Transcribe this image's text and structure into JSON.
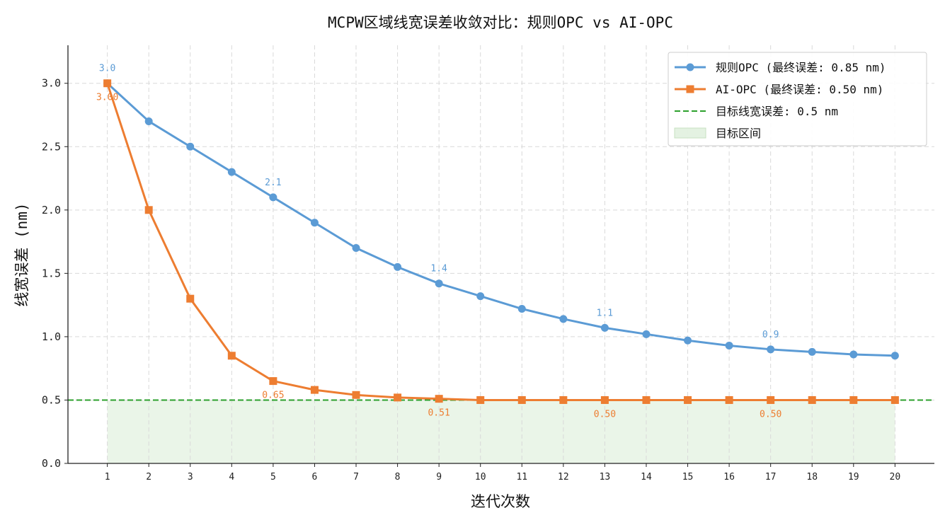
{
  "chart_data": {
    "type": "line",
    "title": "MCPW区域线宽误差收敛对比：规则OPC vs AI-OPC",
    "xlabel": "迭代次数",
    "ylabel": "线宽误差 (nm)",
    "x": [
      1,
      2,
      3,
      4,
      5,
      6,
      7,
      8,
      9,
      10,
      11,
      12,
      13,
      14,
      15,
      16,
      17,
      18,
      19,
      20
    ],
    "xticks": [
      "1",
      "2",
      "3",
      "4",
      "5",
      "6",
      "7",
      "8",
      "9",
      "10",
      "11",
      "12",
      "13",
      "14",
      "15",
      "16",
      "17",
      "18",
      "19",
      "20"
    ],
    "yticks": [
      "0.0",
      "0.5",
      "1.0",
      "1.5",
      "2.0",
      "2.5",
      "3.0"
    ],
    "ytick_values": [
      0.0,
      0.5,
      1.0,
      1.5,
      2.0,
      2.5,
      3.0
    ],
    "xlim": [
      0.05,
      20.95
    ],
    "ylim": [
      0,
      3.3
    ],
    "grid": true,
    "legend_position": "top-right",
    "series": [
      {
        "name": "规则OPC (最终误差: 0.85 nm)",
        "color": "#5b9bd5",
        "marker": "circle",
        "values": [
          3.0,
          2.7,
          2.5,
          2.3,
          2.1,
          1.9,
          1.7,
          1.55,
          1.42,
          1.32,
          1.22,
          1.14,
          1.07,
          1.02,
          0.97,
          0.93,
          0.9,
          0.88,
          0.86,
          0.85
        ]
      },
      {
        "name": "AI-OPC (最终误差: 0.50 nm)",
        "color": "#ed7d31",
        "marker": "square",
        "values": [
          3.0,
          2.0,
          1.3,
          0.85,
          0.65,
          0.58,
          0.54,
          0.52,
          0.51,
          0.5,
          0.5,
          0.5,
          0.5,
          0.5,
          0.5,
          0.5,
          0.5,
          0.5,
          0.5,
          0.5
        ]
      }
    ],
    "target_line": {
      "label": "目标线宽误差: 0.5 nm",
      "value": 0.5,
      "color": "#2ca02c"
    },
    "target_region": {
      "label": "目标区间",
      "from": 0,
      "to": 0.5,
      "color": "#d9ecd5"
    },
    "annotations": [
      {
        "series": 0,
        "x": 1,
        "text": "3.0",
        "placement": "above"
      },
      {
        "series": 0,
        "x": 5,
        "text": "2.1",
        "placement": "above"
      },
      {
        "series": 0,
        "x": 9,
        "text": "1.4",
        "placement": "above"
      },
      {
        "series": 0,
        "x": 13,
        "text": "1.1",
        "placement": "above"
      },
      {
        "series": 0,
        "x": 17,
        "text": "0.9",
        "placement": "above"
      },
      {
        "series": 1,
        "x": 1,
        "text": "3.00",
        "placement": "below"
      },
      {
        "series": 1,
        "x": 5,
        "text": "0.65",
        "placement": "below"
      },
      {
        "series": 1,
        "x": 9,
        "text": "0.51",
        "placement": "below"
      },
      {
        "series": 1,
        "x": 13,
        "text": "0.50",
        "placement": "below"
      },
      {
        "series": 1,
        "x": 17,
        "text": "0.50",
        "placement": "below"
      }
    ]
  }
}
